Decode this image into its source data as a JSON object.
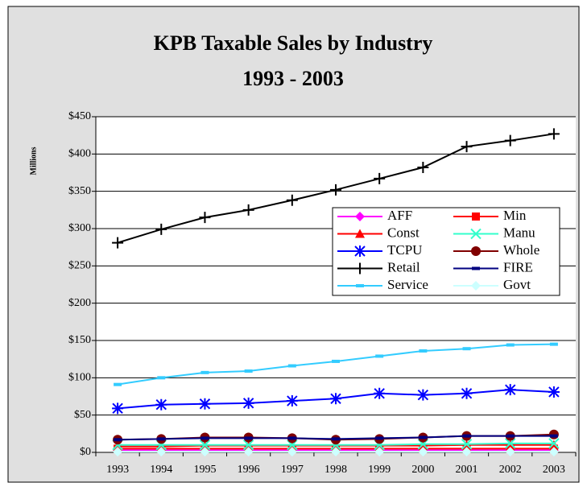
{
  "chart_data": {
    "type": "line",
    "title": "KPB Taxable Sales by Industry",
    "subtitle": "1993 - 2003",
    "y_label": "Millions",
    "categories": [
      "1993",
      "1994",
      "1995",
      "1996",
      "1997",
      "1998",
      "1999",
      "2000",
      "2001",
      "2002",
      "2003"
    ],
    "series": [
      {
        "name": "AFF",
        "color": "#ff00ff",
        "marker": "diamond",
        "values": [
          3,
          3,
          3,
          3,
          3,
          3,
          3,
          3,
          3,
          3,
          3
        ]
      },
      {
        "name": "Min",
        "color": "#ff0000",
        "marker": "square",
        "values": [
          5,
          5,
          5,
          5,
          5,
          5,
          5,
          5,
          5,
          5,
          5
        ]
      },
      {
        "name": "Const",
        "color": "#ff0000",
        "marker": "triangle",
        "values": [
          8,
          8,
          9,
          9,
          9,
          9,
          9,
          9,
          10,
          10,
          10
        ]
      },
      {
        "name": "Manu",
        "color": "#33ffcc",
        "marker": "x",
        "values": [
          10,
          10,
          10,
          10,
          10,
          10,
          10,
          11,
          11,
          12,
          12
        ]
      },
      {
        "name": "TCPU",
        "color": "#0000ff",
        "marker": "star",
        "values": [
          59,
          64,
          65,
          66,
          69,
          72,
          79,
          77,
          79,
          84,
          81
        ]
      },
      {
        "name": "Whole",
        "color": "#800000",
        "marker": "circle",
        "values": [
          17,
          18,
          20,
          20,
          19,
          17,
          18,
          20,
          22,
          22,
          24
        ]
      },
      {
        "name": "Retail",
        "color": "#000000",
        "marker": "plus",
        "values": [
          281,
          299,
          315,
          325,
          338,
          352,
          367,
          382,
          410,
          418,
          427
        ]
      },
      {
        "name": "FIRE",
        "color": "#000080",
        "marker": "dash",
        "values": [
          17,
          18,
          19,
          19,
          19,
          18,
          19,
          20,
          22,
          22,
          22
        ]
      },
      {
        "name": "Service",
        "color": "#33ccff",
        "marker": "dash",
        "values": [
          91,
          100,
          107,
          109,
          116,
          122,
          129,
          136,
          139,
          144,
          145
        ]
      },
      {
        "name": "Govt",
        "color": "#ccffff",
        "marker": "diamond",
        "values": [
          1,
          1,
          1,
          1,
          1,
          1,
          1,
          1,
          1,
          1,
          1
        ]
      }
    ],
    "ylim": [
      0,
      450
    ],
    "yticks": [
      {
        "value": 0,
        "label": "$0"
      },
      {
        "value": 50,
        "label": "$50"
      },
      {
        "value": 100,
        "label": "$100"
      },
      {
        "value": 150,
        "label": "$150"
      },
      {
        "value": 200,
        "label": "$200"
      },
      {
        "value": 250,
        "label": "$250"
      },
      {
        "value": 300,
        "label": "$300"
      },
      {
        "value": 350,
        "label": "$350"
      },
      {
        "value": 400,
        "label": "$400"
      },
      {
        "value": 450,
        "label": "$450"
      }
    ],
    "grid": true,
    "legend": "right"
  }
}
